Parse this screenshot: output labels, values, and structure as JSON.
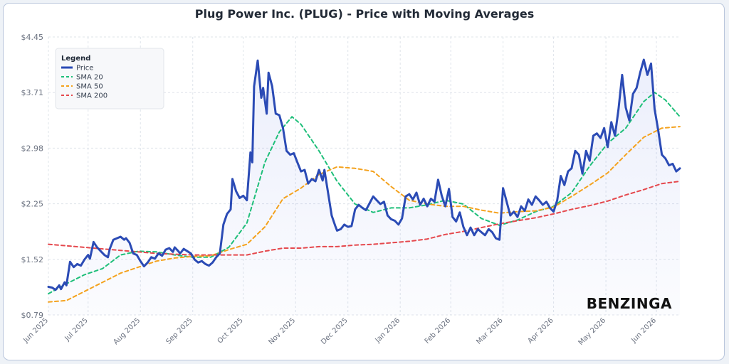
{
  "chart_data": {
    "type": "line",
    "title": "Plug Power Inc. (PLUG) - Price with Moving Averages",
    "ylim": [
      0.79,
      4.45
    ],
    "y_ticks": [
      "$0.79",
      "$1.52",
      "$2.25",
      "$2.98",
      "$3.71",
      "$4.45"
    ],
    "x_ticks": [
      {
        "label": "Jun 2025",
        "t": 0
      },
      {
        "label": "Jul 2025",
        "t": 22
      },
      {
        "label": "Aug 2025",
        "t": 51
      },
      {
        "label": "Sep 2025",
        "t": 80
      },
      {
        "label": "Oct 2025",
        "t": 108
      },
      {
        "label": "Nov 2025",
        "t": 137
      },
      {
        "label": "Dec 2025",
        "t": 166
      },
      {
        "label": "Jan 2026",
        "t": 195
      },
      {
        "label": "Feb 2026",
        "t": 223
      },
      {
        "label": "Mar 2026",
        "t": 252
      },
      {
        "label": "Apr 2026",
        "t": 280
      },
      {
        "label": "May 2026",
        "t": 309
      },
      {
        "label": "Jun 2026",
        "t": 337
      }
    ],
    "grid": true,
    "area_under_price": true,
    "legend": {
      "title": "Legend",
      "position": "top-left"
    },
    "series": [
      {
        "name": "Price",
        "color": "#2b4bb5",
        "style": "solid",
        "points": [
          [
            0,
            1.16
          ],
          [
            2,
            1.15
          ],
          [
            4,
            1.12
          ],
          [
            6,
            1.18
          ],
          [
            7,
            1.13
          ],
          [
            9,
            1.22
          ],
          [
            10,
            1.18
          ],
          [
            12,
            1.49
          ],
          [
            14,
            1.42
          ],
          [
            16,
            1.46
          ],
          [
            18,
            1.44
          ],
          [
            20,
            1.52
          ],
          [
            22,
            1.58
          ],
          [
            23,
            1.53
          ],
          [
            25,
            1.75
          ],
          [
            27,
            1.68
          ],
          [
            29,
            1.63
          ],
          [
            31,
            1.58
          ],
          [
            33,
            1.55
          ],
          [
            34,
            1.66
          ],
          [
            36,
            1.78
          ],
          [
            38,
            1.8
          ],
          [
            40,
            1.82
          ],
          [
            42,
            1.78
          ],
          [
            43,
            1.8
          ],
          [
            45,
            1.74
          ],
          [
            47,
            1.6
          ],
          [
            49,
            1.58
          ],
          [
            51,
            1.5
          ],
          [
            53,
            1.43
          ],
          [
            55,
            1.48
          ],
          [
            57,
            1.55
          ],
          [
            59,
            1.53
          ],
          [
            61,
            1.6
          ],
          [
            63,
            1.57
          ],
          [
            65,
            1.65
          ],
          [
            67,
            1.67
          ],
          [
            69,
            1.62
          ],
          [
            70,
            1.68
          ],
          [
            72,
            1.63
          ],
          [
            73,
            1.6
          ],
          [
            75,
            1.66
          ],
          [
            77,
            1.63
          ],
          [
            79,
            1.6
          ],
          [
            81,
            1.52
          ],
          [
            83,
            1.48
          ],
          [
            85,
            1.5
          ],
          [
            87,
            1.46
          ],
          [
            89,
            1.44
          ],
          [
            91,
            1.48
          ],
          [
            93,
            1.55
          ],
          [
            95,
            1.6
          ],
          [
            97,
            1.98
          ],
          [
            99,
            2.12
          ],
          [
            101,
            2.18
          ],
          [
            102,
            2.58
          ],
          [
            104,
            2.42
          ],
          [
            106,
            2.33
          ],
          [
            108,
            2.36
          ],
          [
            110,
            2.3
          ],
          [
            112,
            2.93
          ],
          [
            113,
            2.8
          ],
          [
            114,
            3.8
          ],
          [
            116,
            4.14
          ],
          [
            118,
            3.65
          ],
          [
            119,
            3.78
          ],
          [
            121,
            3.44
          ],
          [
            122,
            3.98
          ],
          [
            124,
            3.8
          ],
          [
            126,
            3.44
          ],
          [
            128,
            3.42
          ],
          [
            130,
            3.25
          ],
          [
            132,
            2.95
          ],
          [
            134,
            2.9
          ],
          [
            136,
            2.92
          ],
          [
            138,
            2.8
          ],
          [
            140,
            2.68
          ],
          [
            142,
            2.7
          ],
          [
            144,
            2.52
          ],
          [
            146,
            2.58
          ],
          [
            148,
            2.55
          ],
          [
            150,
            2.7
          ],
          [
            152,
            2.56
          ],
          [
            153,
            2.7
          ],
          [
            155,
            2.4
          ],
          [
            157,
            2.1
          ],
          [
            159,
            1.96
          ],
          [
            160,
            1.9
          ],
          [
            162,
            1.92
          ],
          [
            164,
            1.98
          ],
          [
            166,
            1.95
          ],
          [
            168,
            1.96
          ],
          [
            170,
            2.18
          ],
          [
            172,
            2.24
          ],
          [
            174,
            2.2
          ],
          [
            176,
            2.17
          ],
          [
            178,
            2.26
          ],
          [
            180,
            2.35
          ],
          [
            182,
            2.3
          ],
          [
            184,
            2.25
          ],
          [
            186,
            2.28
          ],
          [
            188,
            2.1
          ],
          [
            190,
            2.05
          ],
          [
            192,
            2.03
          ],
          [
            194,
            1.98
          ],
          [
            196,
            2.06
          ],
          [
            198,
            2.35
          ],
          [
            200,
            2.38
          ],
          [
            202,
            2.31
          ],
          [
            204,
            2.4
          ],
          [
            206,
            2.24
          ],
          [
            208,
            2.32
          ],
          [
            210,
            2.22
          ],
          [
            212,
            2.32
          ],
          [
            214,
            2.28
          ],
          [
            216,
            2.57
          ],
          [
            218,
            2.36
          ],
          [
            220,
            2.22
          ],
          [
            222,
            2.45
          ],
          [
            224,
            2.08
          ],
          [
            226,
            2.02
          ],
          [
            228,
            2.14
          ],
          [
            230,
            1.95
          ],
          [
            232,
            1.84
          ],
          [
            234,
            1.94
          ],
          [
            236,
            1.84
          ],
          [
            238,
            1.92
          ],
          [
            240,
            1.88
          ],
          [
            242,
            1.84
          ],
          [
            244,
            1.92
          ],
          [
            246,
            1.88
          ],
          [
            248,
            1.8
          ],
          [
            250,
            1.78
          ],
          [
            252,
            2.46
          ],
          [
            254,
            2.28
          ],
          [
            256,
            2.1
          ],
          [
            258,
            2.15
          ],
          [
            260,
            2.08
          ],
          [
            262,
            2.22
          ],
          [
            264,
            2.16
          ],
          [
            266,
            2.31
          ],
          [
            268,
            2.24
          ],
          [
            270,
            2.35
          ],
          [
            272,
            2.3
          ],
          [
            274,
            2.24
          ],
          [
            276,
            2.28
          ],
          [
            278,
            2.2
          ],
          [
            280,
            2.15
          ],
          [
            282,
            2.3
          ],
          [
            284,
            2.62
          ],
          [
            286,
            2.5
          ],
          [
            288,
            2.68
          ],
          [
            290,
            2.72
          ],
          [
            292,
            2.95
          ],
          [
            294,
            2.9
          ],
          [
            296,
            2.65
          ],
          [
            298,
            2.95
          ],
          [
            300,
            2.82
          ],
          [
            302,
            3.15
          ],
          [
            304,
            3.18
          ],
          [
            306,
            3.12
          ],
          [
            308,
            3.25
          ],
          [
            310,
            3.0
          ],
          [
            312,
            3.33
          ],
          [
            314,
            3.15
          ],
          [
            316,
            3.5
          ],
          [
            318,
            3.95
          ],
          [
            320,
            3.52
          ],
          [
            322,
            3.35
          ],
          [
            324,
            3.7
          ],
          [
            326,
            3.78
          ],
          [
            328,
            3.98
          ],
          [
            330,
            4.15
          ],
          [
            332,
            3.95
          ],
          [
            334,
            4.1
          ],
          [
            336,
            3.5
          ],
          [
            338,
            3.22
          ],
          [
            340,
            2.9
          ],
          [
            342,
            2.85
          ],
          [
            344,
            2.76
          ],
          [
            346,
            2.78
          ],
          [
            348,
            2.68
          ],
          [
            350,
            2.72
          ]
        ]
      },
      {
        "name": "SMA 20",
        "color": "#1fbf7a",
        "style": "dashed",
        "points": [
          [
            0,
            1.07
          ],
          [
            10,
            1.2
          ],
          [
            20,
            1.32
          ],
          [
            30,
            1.4
          ],
          [
            40,
            1.58
          ],
          [
            50,
            1.63
          ],
          [
            60,
            1.62
          ],
          [
            70,
            1.58
          ],
          [
            80,
            1.55
          ],
          [
            90,
            1.55
          ],
          [
            100,
            1.68
          ],
          [
            110,
            2.0
          ],
          [
            120,
            2.8
          ],
          [
            128,
            3.2
          ],
          [
            135,
            3.4
          ],
          [
            140,
            3.3
          ],
          [
            150,
            2.95
          ],
          [
            160,
            2.55
          ],
          [
            170,
            2.25
          ],
          [
            180,
            2.14
          ],
          [
            190,
            2.2
          ],
          [
            200,
            2.2
          ],
          [
            210,
            2.24
          ],
          [
            220,
            2.3
          ],
          [
            230,
            2.25
          ],
          [
            240,
            2.06
          ],
          [
            250,
            1.97
          ],
          [
            260,
            2.04
          ],
          [
            270,
            2.15
          ],
          [
            280,
            2.22
          ],
          [
            290,
            2.4
          ],
          [
            300,
            2.75
          ],
          [
            310,
            3.05
          ],
          [
            320,
            3.25
          ],
          [
            330,
            3.6
          ],
          [
            336,
            3.72
          ],
          [
            342,
            3.62
          ],
          [
            350,
            3.4
          ]
        ]
      },
      {
        "name": "SMA 50",
        "color": "#f4a21e",
        "style": "dashed",
        "points": [
          [
            0,
            0.96
          ],
          [
            10,
            0.98
          ],
          [
            20,
            1.1
          ],
          [
            30,
            1.22
          ],
          [
            40,
            1.34
          ],
          [
            50,
            1.42
          ],
          [
            60,
            1.5
          ],
          [
            70,
            1.54
          ],
          [
            80,
            1.56
          ],
          [
            90,
            1.57
          ],
          [
            100,
            1.65
          ],
          [
            110,
            1.72
          ],
          [
            120,
            1.95
          ],
          [
            130,
            2.32
          ],
          [
            140,
            2.46
          ],
          [
            150,
            2.64
          ],
          [
            160,
            2.74
          ],
          [
            170,
            2.72
          ],
          [
            180,
            2.68
          ],
          [
            190,
            2.48
          ],
          [
            200,
            2.3
          ],
          [
            210,
            2.25
          ],
          [
            220,
            2.22
          ],
          [
            230,
            2.22
          ],
          [
            240,
            2.17
          ],
          [
            250,
            2.13
          ],
          [
            260,
            2.15
          ],
          [
            270,
            2.16
          ],
          [
            280,
            2.21
          ],
          [
            290,
            2.35
          ],
          [
            300,
            2.5
          ],
          [
            310,
            2.66
          ],
          [
            320,
            2.9
          ],
          [
            330,
            3.13
          ],
          [
            340,
            3.25
          ],
          [
            350,
            3.27
          ]
        ]
      },
      {
        "name": "SMA 200",
        "color": "#e5484d",
        "style": "dashed",
        "points": [
          [
            0,
            1.72
          ],
          [
            20,
            1.68
          ],
          [
            40,
            1.64
          ],
          [
            60,
            1.6
          ],
          [
            80,
            1.58
          ],
          [
            100,
            1.58
          ],
          [
            110,
            1.58
          ],
          [
            120,
            1.63
          ],
          [
            130,
            1.67
          ],
          [
            140,
            1.67
          ],
          [
            150,
            1.69
          ],
          [
            160,
            1.69
          ],
          [
            170,
            1.71
          ],
          [
            180,
            1.72
          ],
          [
            190,
            1.74
          ],
          [
            200,
            1.76
          ],
          [
            210,
            1.79
          ],
          [
            220,
            1.85
          ],
          [
            230,
            1.89
          ],
          [
            240,
            1.94
          ],
          [
            250,
            1.99
          ],
          [
            260,
            2.03
          ],
          [
            270,
            2.07
          ],
          [
            280,
            2.12
          ],
          [
            290,
            2.18
          ],
          [
            300,
            2.23
          ],
          [
            310,
            2.29
          ],
          [
            320,
            2.37
          ],
          [
            330,
            2.44
          ],
          [
            340,
            2.52
          ],
          [
            350,
            2.55
          ]
        ]
      }
    ]
  },
  "watermark": "BENZINGA"
}
